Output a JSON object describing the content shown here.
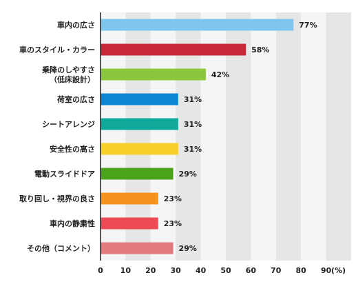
{
  "chart_data": {
    "type": "bar",
    "orientation": "horizontal",
    "categories": [
      [
        "車内の広さ"
      ],
      [
        "車のスタイル・カラー"
      ],
      [
        "乗降のしやすさ",
        "（低床設計）"
      ],
      [
        "荷室の広さ"
      ],
      [
        "シートアレンジ"
      ],
      [
        "安全性の高さ"
      ],
      [
        "電動スライドドア"
      ],
      [
        "取り回し・視界の良さ"
      ],
      [
        "車内の静粛性"
      ],
      [
        "その他（コメント）"
      ]
    ],
    "values": [
      77,
      58,
      42,
      31,
      31,
      31,
      29,
      23,
      23,
      29
    ],
    "value_labels": [
      "77%",
      "58%",
      "42%",
      "31%",
      "31%",
      "31%",
      "29%",
      "23%",
      "23%",
      "29%"
    ],
    "bar_colors": [
      "#7ec6ee",
      "#c8283a",
      "#8cc63f",
      "#0d86d1",
      "#10a89a",
      "#f7d12a",
      "#4ba31c",
      "#f4941f",
      "#ee4a56",
      "#e17b80"
    ],
    "x_ticks": [
      "0",
      "10",
      "20",
      "30",
      "40",
      "50",
      "60",
      "70",
      "80",
      "90"
    ],
    "x_unit": "(%)",
    "xlim": [
      0,
      100
    ],
    "grid": "alternating vertical bands"
  }
}
